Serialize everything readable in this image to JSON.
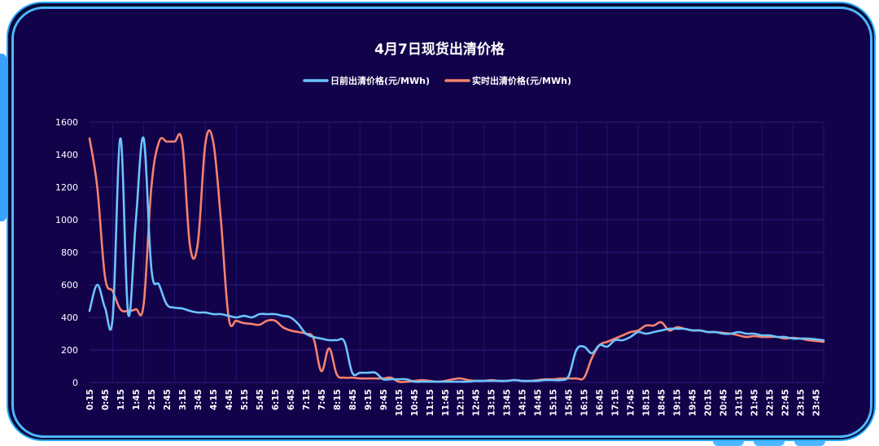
{
  "chart_data": {
    "type": "line",
    "title": "4月7日现货出清价格",
    "xlabel": "",
    "ylabel": "",
    "ylim": [
      0,
      1600
    ],
    "yticks": [
      0,
      200,
      400,
      600,
      800,
      1000,
      1200,
      1400,
      1600
    ],
    "grid": true,
    "legend_position": "top",
    "x_tick_labels": [
      "0:15",
      "0:45",
      "1:15",
      "1:45",
      "2:15",
      "2:45",
      "3:15",
      "3:45",
      "4:15",
      "4:45",
      "5:15",
      "5:45",
      "6:15",
      "6:45",
      "7:15",
      "7:45",
      "8:15",
      "8:45",
      "9:15",
      "9:45",
      "10:15",
      "10:45",
      "11:15",
      "11:45",
      "12:15",
      "12:45",
      "13:15",
      "13:45",
      "14:15",
      "14:45",
      "15:15",
      "15:45",
      "16:15",
      "16:45",
      "17:15",
      "17:45",
      "18:15",
      "18:45",
      "19:15",
      "19:45",
      "20:15",
      "20:45",
      "21:15",
      "21:45",
      "22:15",
      "22:45",
      "23:15",
      "23:45"
    ],
    "series": [
      {
        "name": "日前出清价格(元/MWh)",
        "color": "#6cc4ff",
        "points": [
          [
            "0:15",
            440
          ],
          [
            "0:30",
            600
          ],
          [
            "0:45",
            460
          ],
          [
            "1:00",
            400
          ],
          [
            "1:15",
            1500
          ],
          [
            "1:30",
            420
          ],
          [
            "1:45",
            1000
          ],
          [
            "2:00",
            1500
          ],
          [
            "2:15",
            700
          ],
          [
            "2:30",
            600
          ],
          [
            "2:45",
            480
          ],
          [
            "3:00",
            460
          ],
          [
            "3:15",
            455
          ],
          [
            "3:30",
            440
          ],
          [
            "3:45",
            430
          ],
          [
            "4:00",
            430
          ],
          [
            "4:15",
            420
          ],
          [
            "4:30",
            420
          ],
          [
            "4:45",
            410
          ],
          [
            "5:00",
            400
          ],
          [
            "5:15",
            410
          ],
          [
            "5:30",
            400
          ],
          [
            "5:45",
            420
          ],
          [
            "6:00",
            420
          ],
          [
            "6:15",
            420
          ],
          [
            "6:30",
            410
          ],
          [
            "6:45",
            400
          ],
          [
            "7:00",
            360
          ],
          [
            "7:15",
            300
          ],
          [
            "7:30",
            280
          ],
          [
            "7:45",
            270
          ],
          [
            "8:00",
            260
          ],
          [
            "8:15",
            260
          ],
          [
            "8:30",
            250
          ],
          [
            "8:45",
            60
          ],
          [
            "9:00",
            60
          ],
          [
            "9:15",
            60
          ],
          [
            "9:30",
            60
          ],
          [
            "9:45",
            20
          ],
          [
            "10:00",
            20
          ],
          [
            "10:15",
            20
          ],
          [
            "10:30",
            20
          ],
          [
            "10:45",
            5
          ],
          [
            "11:00",
            5
          ],
          [
            "11:15",
            5
          ],
          [
            "11:30",
            5
          ],
          [
            "11:45",
            5
          ],
          [
            "12:00",
            5
          ],
          [
            "12:15",
            5
          ],
          [
            "12:30",
            5
          ],
          [
            "12:45",
            10
          ],
          [
            "13:00",
            10
          ],
          [
            "13:15",
            10
          ],
          [
            "13:30",
            10
          ],
          [
            "13:45",
            10
          ],
          [
            "14:00",
            15
          ],
          [
            "14:15",
            10
          ],
          [
            "14:30",
            10
          ],
          [
            "14:45",
            10
          ],
          [
            "15:00",
            15
          ],
          [
            "15:15",
            15
          ],
          [
            "15:30",
            15
          ],
          [
            "15:45",
            40
          ],
          [
            "16:00",
            200
          ],
          [
            "16:15",
            220
          ],
          [
            "16:30",
            180
          ],
          [
            "16:45",
            230
          ],
          [
            "17:00",
            220
          ],
          [
            "17:15",
            260
          ],
          [
            "17:30",
            260
          ],
          [
            "17:45",
            280
          ],
          [
            "18:00",
            310
          ],
          [
            "18:15",
            300
          ],
          [
            "18:30",
            310
          ],
          [
            "18:45",
            320
          ],
          [
            "19:00",
            330
          ],
          [
            "19:15",
            330
          ],
          [
            "19:30",
            330
          ],
          [
            "19:45",
            320
          ],
          [
            "20:00",
            320
          ],
          [
            "20:15",
            310
          ],
          [
            "20:30",
            310
          ],
          [
            "20:45",
            300
          ],
          [
            "21:00",
            300
          ],
          [
            "21:15",
            310
          ],
          [
            "21:30",
            300
          ],
          [
            "21:45",
            300
          ],
          [
            "22:00",
            290
          ],
          [
            "22:15",
            290
          ],
          [
            "22:30",
            280
          ],
          [
            "22:45",
            280
          ],
          [
            "23:00",
            270
          ],
          [
            "23:15",
            270
          ],
          [
            "23:30",
            270
          ],
          [
            "23:45",
            265
          ],
          [
            "24:00",
            260
          ]
        ]
      },
      {
        "name": "实时出清价格(元/MWh)",
        "color": "#f7826e",
        "points": [
          [
            "0:15",
            1500
          ],
          [
            "0:30",
            1200
          ],
          [
            "0:45",
            650
          ],
          [
            "1:00",
            560
          ],
          [
            "1:15",
            450
          ],
          [
            "1:30",
            440
          ],
          [
            "1:45",
            450
          ],
          [
            "2:00",
            480
          ],
          [
            "2:15",
            1200
          ],
          [
            "2:30",
            1480
          ],
          [
            "2:45",
            1480
          ],
          [
            "3:00",
            1480
          ],
          [
            "3:15",
            1475
          ],
          [
            "3:30",
            840
          ],
          [
            "3:45",
            850
          ],
          [
            "4:00",
            1470
          ],
          [
            "4:15",
            1480
          ],
          [
            "4:30",
            1000
          ],
          [
            "4:45",
            400
          ],
          [
            "5:00",
            380
          ],
          [
            "5:15",
            365
          ],
          [
            "5:30",
            360
          ],
          [
            "5:45",
            355
          ],
          [
            "6:00",
            380
          ],
          [
            "6:15",
            380
          ],
          [
            "6:30",
            340
          ],
          [
            "6:45",
            320
          ],
          [
            "7:00",
            310
          ],
          [
            "7:15",
            300
          ],
          [
            "7:30",
            270
          ],
          [
            "7:45",
            70
          ],
          [
            "8:00",
            210
          ],
          [
            "8:15",
            50
          ],
          [
            "8:30",
            30
          ],
          [
            "8:45",
            30
          ],
          [
            "9:00",
            25
          ],
          [
            "9:15",
            25
          ],
          [
            "9:30",
            25
          ],
          [
            "9:45",
            25
          ],
          [
            "10:00",
            30
          ],
          [
            "10:15",
            5
          ],
          [
            "10:30",
            5
          ],
          [
            "10:45",
            10
          ],
          [
            "11:00",
            15
          ],
          [
            "11:15",
            10
          ],
          [
            "11:30",
            5
          ],
          [
            "11:45",
            10
          ],
          [
            "12:00",
            20
          ],
          [
            "12:15",
            25
          ],
          [
            "12:30",
            15
          ],
          [
            "12:45",
            10
          ],
          [
            "13:00",
            10
          ],
          [
            "13:15",
            15
          ],
          [
            "13:30",
            10
          ],
          [
            "13:45",
            10
          ],
          [
            "14:00",
            15
          ],
          [
            "14:15",
            10
          ],
          [
            "14:30",
            10
          ],
          [
            "14:45",
            15
          ],
          [
            "15:00",
            20
          ],
          [
            "15:15",
            20
          ],
          [
            "15:30",
            25
          ],
          [
            "15:45",
            25
          ],
          [
            "16:00",
            25
          ],
          [
            "16:15",
            30
          ],
          [
            "16:30",
            150
          ],
          [
            "16:45",
            230
          ],
          [
            "17:00",
            250
          ],
          [
            "17:15",
            270
          ],
          [
            "17:30",
            290
          ],
          [
            "17:45",
            310
          ],
          [
            "18:00",
            320
          ],
          [
            "18:15",
            350
          ],
          [
            "18:30",
            350
          ],
          [
            "18:45",
            370
          ],
          [
            "19:00",
            320
          ],
          [
            "19:15",
            340
          ],
          [
            "19:30",
            330
          ],
          [
            "19:45",
            320
          ],
          [
            "20:00",
            320
          ],
          [
            "20:15",
            310
          ],
          [
            "20:30",
            310
          ],
          [
            "20:45",
            305
          ],
          [
            "21:00",
            300
          ],
          [
            "21:15",
            290
          ],
          [
            "21:30",
            280
          ],
          [
            "21:45",
            285
          ],
          [
            "22:00",
            280
          ],
          [
            "22:15",
            280
          ],
          [
            "22:30",
            280
          ],
          [
            "22:45",
            270
          ],
          [
            "23:00",
            275
          ],
          [
            "23:15",
            270
          ],
          [
            "23:30",
            260
          ],
          [
            "23:45",
            255
          ],
          [
            "24:00",
            250
          ]
        ]
      }
    ]
  }
}
